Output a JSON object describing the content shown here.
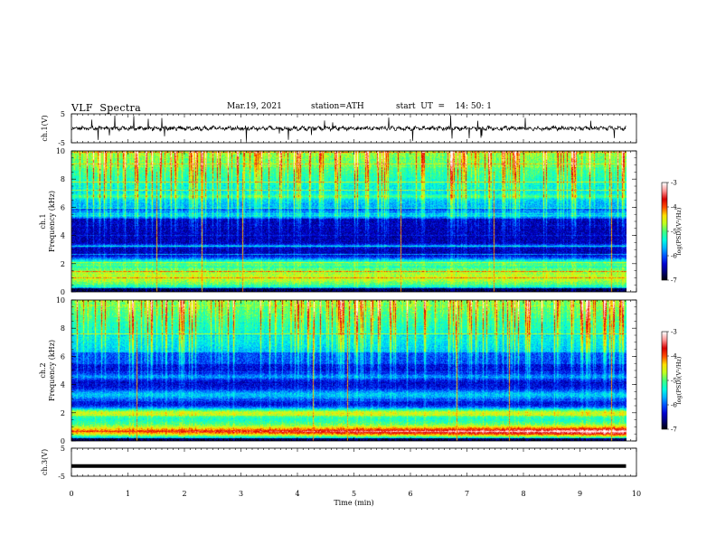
{
  "header": {
    "title": "VLF  Spectra",
    "date": "Mar.19, 2021",
    "station": "station=ATH",
    "start": "start  UT  =    14: 50: 1"
  },
  "chart_data": [
    {
      "type": "line",
      "panel": "ch1-waveform",
      "ylabel": "ch.1(V)",
      "ylim": [
        -5,
        5
      ],
      "ytick_labels": [
        "5",
        "-5"
      ],
      "baseline": 0,
      "trace_color": "#000000"
    },
    {
      "type": "heatmap",
      "panel": "ch1-spectrogram",
      "ylabel": "ch.1",
      "ylabel2": "Frequency (kHz)",
      "ylim": [
        0,
        10
      ],
      "ytick_labels": [
        "0",
        "2",
        "4",
        "6",
        "8",
        "10"
      ],
      "colorbar": {
        "label": "log(PSD)(V²/Hz)",
        "range": [
          -7,
          -3
        ],
        "tick_labels": [
          "-3",
          "-4",
          "-5",
          "-6",
          "-7"
        ]
      }
    },
    {
      "type": "heatmap",
      "panel": "ch2-spectrogram",
      "ylabel": "ch.2",
      "ylabel2": "Frequency (kHz)",
      "ylim": [
        0,
        10
      ],
      "ytick_labels": [
        "0",
        "2",
        "4",
        "6",
        "8",
        "10"
      ],
      "colorbar": {
        "label": "log(PSD)(V²/Hz)",
        "range": [
          -7,
          -3
        ],
        "tick_labels": [
          "-3",
          "-4",
          "-5",
          "-6",
          "-7"
        ]
      }
    },
    {
      "type": "line",
      "panel": "ch3-waveform",
      "ylabel": "ch.3(V)",
      "ylim": [
        -5,
        5
      ],
      "ytick_labels": [
        "5",
        "-5"
      ],
      "baseline": -1.4,
      "trace_color": "#000000"
    }
  ],
  "xaxis": {
    "xlabel": "Time  (min)",
    "xlim": [
      0,
      10
    ],
    "tick_labels": [
      "0",
      "1",
      "2",
      "3",
      "4",
      "5",
      "6",
      "7",
      "8",
      "9",
      "10"
    ],
    "data_end": 9.82
  },
  "colormap": [
    "#000000",
    "#000070",
    "#0000d0",
    "#0050ff",
    "#00b4ff",
    "#00ffe0",
    "#40ff80",
    "#c0ff20",
    "#ffe000",
    "#ff5000",
    "#d80000",
    "#ff9090",
    "#ffffff"
  ]
}
